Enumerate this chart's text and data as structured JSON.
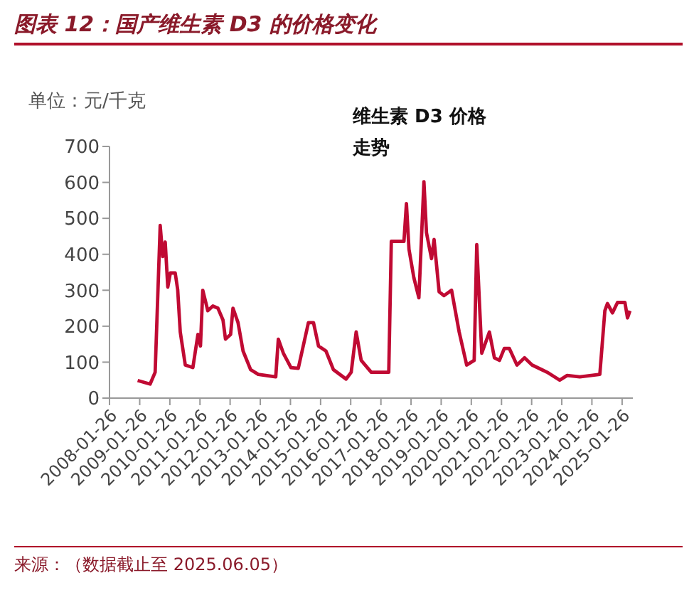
{
  "chart_data": {
    "type": "line",
    "title": "图表 12：国产维生素 D3 的价格变化",
    "ylabel": "单位：元/千克",
    "annotations": [
      "维生素 D3 价格走势",
      "来源：（数据截止至 2025.06.05）"
    ],
    "x": [
      "2009-01",
      "2009-06",
      "2009-08",
      "2009-10",
      "2009-11",
      "2009-12",
      "2010-01",
      "2010-02",
      "2010-04",
      "2010-05",
      "2010-06",
      "2010-08",
      "2010-11",
      "2011-01",
      "2011-02",
      "2011-03",
      "2011-05",
      "2011-07",
      "2011-09",
      "2011-11",
      "2011-12",
      "2012-02",
      "2012-03",
      "2012-05",
      "2012-07",
      "2012-10",
      "2013-01",
      "2013-08",
      "2013-09",
      "2013-11",
      "2014-02",
      "2014-05",
      "2014-09",
      "2014-11",
      "2015-01",
      "2015-04",
      "2015-07",
      "2015-12",
      "2016-02",
      "2016-04",
      "2016-06",
      "2016-10",
      "2017-05",
      "2017-06",
      "2017-11",
      "2017-12",
      "2018-01",
      "2018-03",
      "2018-05",
      "2018-07",
      "2018-08",
      "2018-10",
      "2018-11",
      "2019-01",
      "2019-03",
      "2019-06",
      "2019-09",
      "2019-12",
      "2020-03",
      "2020-04",
      "2020-06",
      "2020-09",
      "2020-11",
      "2021-01",
      "2021-03",
      "2021-05",
      "2021-08",
      "2021-11",
      "2022-02",
      "2022-08",
      "2023-01",
      "2023-04",
      "2023-09",
      "2024-05",
      "2024-07",
      "2024-08",
      "2024-10",
      "2024-12",
      "2025-03",
      "2025-04",
      "2025-05"
    ],
    "series": [
      {
        "color": "#c00a33",
        "values": [
          49,
          39,
          72,
          480,
          394,
          434,
          309,
          348,
          348,
          302,
          184,
          92,
          85,
          177,
          145,
          300,
          243,
          256,
          250,
          217,
          164,
          177,
          250,
          210,
          131,
          79,
          66,
          59,
          164,
          125,
          85,
          83,
          210,
          210,
          145,
          131,
          79,
          53,
          72,
          184,
          105,
          72,
          72,
          436,
          436,
          541,
          414,
          335,
          279,
          602,
          460,
          388,
          441,
          296,
          285,
          300,
          184,
          92,
          105,
          427,
          125,
          184,
          112,
          105,
          138,
          138,
          92,
          112,
          92,
          72,
          50,
          63,
          59,
          66,
          243,
          263,
          237,
          266,
          266,
          223,
          243
        ]
      }
    ],
    "xlim": [
      "2008-01-26",
      "2025-06-05"
    ],
    "xticks": [
      "2008-01-26",
      "2009-01-26",
      "2010-01-26",
      "2011-01-26",
      "2012-01-26",
      "2013-01-26",
      "2014-01-26",
      "2015-01-26",
      "2016-01-26",
      "2017-01-26",
      "2018-01-26",
      "2019-01-26",
      "2020-01-26",
      "2021-01-26",
      "2022-01-26",
      "2023-01-26",
      "2024-01-26",
      "2025-01-26"
    ],
    "ylim": [
      0,
      700
    ],
    "yticks": [
      0,
      100,
      200,
      300,
      400,
      500,
      600,
      700
    ],
    "marker": "none",
    "line_style": "solid"
  }
}
